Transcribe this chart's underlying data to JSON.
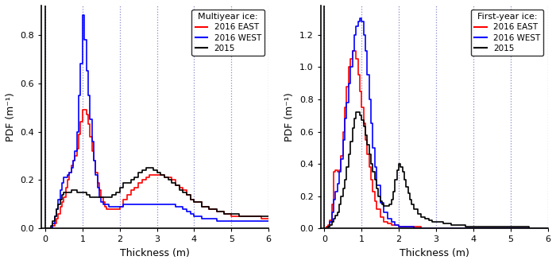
{
  "left_title": "Multiyear ice:",
  "right_title": "First-year ice:",
  "colors": [
    "red",
    "blue",
    "black"
  ],
  "xlabel": "Thickness (m)",
  "ylabel": "PDF (m⁻¹)",
  "xlim": [
    -0.1,
    6
  ],
  "left_ylim": [
    0,
    0.92
  ],
  "right_ylim": [
    0,
    1.38
  ],
  "left_yticks": [
    0.0,
    0.2,
    0.4,
    0.6,
    0.8
  ],
  "right_yticks": [
    0.0,
    0.2,
    0.4,
    0.6,
    0.8,
    1.0,
    1.2
  ],
  "xticks": [
    0,
    1,
    2,
    3,
    4,
    5,
    6
  ],
  "grid_color": "#8888cc",
  "bg_color": "#ffffff",
  "myi_east_x": [
    0.0,
    0.05,
    0.1,
    0.15,
    0.2,
    0.25,
    0.3,
    0.35,
    0.4,
    0.45,
    0.5,
    0.55,
    0.6,
    0.65,
    0.7,
    0.75,
    0.8,
    0.85,
    0.9,
    0.95,
    1.0,
    1.05,
    1.1,
    1.15,
    1.2,
    1.25,
    1.3,
    1.35,
    1.4,
    1.45,
    1.5,
    1.55,
    1.6,
    1.65,
    1.7,
    1.75,
    1.8,
    1.85,
    1.9,
    1.95,
    2.0,
    2.1,
    2.2,
    2.3,
    2.4,
    2.5,
    2.6,
    2.7,
    2.8,
    2.9,
    3.0,
    3.1,
    3.2,
    3.3,
    3.4,
    3.5,
    3.6,
    3.7,
    3.8,
    3.9,
    4.0,
    4.2,
    4.4,
    4.6,
    4.8,
    5.0,
    5.2,
    5.4,
    5.6,
    5.8,
    6.0
  ],
  "myi_east_y": [
    0.0,
    0.0,
    0.0,
    0.0,
    0.01,
    0.02,
    0.04,
    0.06,
    0.09,
    0.11,
    0.13,
    0.17,
    0.2,
    0.23,
    0.26,
    0.28,
    0.3,
    0.33,
    0.39,
    0.44,
    0.49,
    0.49,
    0.47,
    0.43,
    0.38,
    0.32,
    0.28,
    0.23,
    0.19,
    0.16,
    0.13,
    0.11,
    0.09,
    0.08,
    0.08,
    0.08,
    0.08,
    0.08,
    0.08,
    0.08,
    0.09,
    0.12,
    0.14,
    0.16,
    0.17,
    0.19,
    0.2,
    0.21,
    0.22,
    0.22,
    0.22,
    0.22,
    0.21,
    0.21,
    0.2,
    0.18,
    0.17,
    0.16,
    0.14,
    0.12,
    0.11,
    0.09,
    0.08,
    0.07,
    0.06,
    0.05,
    0.05,
    0.05,
    0.05,
    0.04,
    0.04
  ],
  "myi_west_x": [
    0.0,
    0.05,
    0.1,
    0.15,
    0.2,
    0.25,
    0.3,
    0.35,
    0.4,
    0.45,
    0.5,
    0.55,
    0.6,
    0.65,
    0.7,
    0.75,
    0.8,
    0.85,
    0.9,
    0.95,
    1.0,
    1.05,
    1.1,
    1.15,
    1.2,
    1.25,
    1.3,
    1.35,
    1.4,
    1.45,
    1.5,
    1.55,
    1.6,
    1.65,
    1.7,
    1.75,
    1.8,
    1.85,
    1.9,
    1.95,
    2.0,
    2.1,
    2.2,
    2.3,
    2.4,
    2.5,
    2.6,
    2.7,
    2.8,
    2.9,
    3.0,
    3.1,
    3.2,
    3.3,
    3.4,
    3.5,
    3.6,
    3.7,
    3.8,
    3.9,
    4.0,
    4.2,
    4.4,
    4.6,
    4.8,
    5.0,
    5.2,
    5.4,
    5.6,
    5.8,
    6.0
  ],
  "myi_west_y": [
    0.0,
    0.0,
    0.0,
    0.0,
    0.02,
    0.05,
    0.08,
    0.12,
    0.16,
    0.19,
    0.21,
    0.21,
    0.22,
    0.23,
    0.25,
    0.28,
    0.32,
    0.4,
    0.55,
    0.68,
    0.88,
    0.78,
    0.65,
    0.55,
    0.45,
    0.36,
    0.28,
    0.22,
    0.17,
    0.13,
    0.11,
    0.1,
    0.1,
    0.1,
    0.09,
    0.09,
    0.09,
    0.09,
    0.09,
    0.09,
    0.09,
    0.1,
    0.1,
    0.1,
    0.1,
    0.1,
    0.1,
    0.1,
    0.1,
    0.1,
    0.1,
    0.1,
    0.1,
    0.1,
    0.1,
    0.09,
    0.09,
    0.08,
    0.07,
    0.06,
    0.05,
    0.04,
    0.04,
    0.03,
    0.03,
    0.03,
    0.03,
    0.03,
    0.03,
    0.03,
    0.03
  ],
  "myi_2015_x": [
    0.0,
    0.05,
    0.1,
    0.15,
    0.2,
    0.25,
    0.3,
    0.35,
    0.4,
    0.45,
    0.5,
    0.55,
    0.6,
    0.65,
    0.7,
    0.75,
    0.8,
    0.85,
    0.9,
    0.95,
    1.0,
    1.1,
    1.2,
    1.3,
    1.4,
    1.5,
    1.6,
    1.7,
    1.8,
    1.9,
    2.0,
    2.1,
    2.2,
    2.3,
    2.4,
    2.5,
    2.6,
    2.7,
    2.8,
    2.9,
    3.0,
    3.1,
    3.2,
    3.3,
    3.4,
    3.5,
    3.6,
    3.7,
    3.8,
    3.9,
    4.0,
    4.2,
    4.4,
    4.6,
    4.8,
    5.0,
    5.2,
    5.4,
    5.6,
    5.8,
    6.0
  ],
  "myi_2015_y": [
    0.0,
    0.0,
    0.0,
    0.01,
    0.03,
    0.05,
    0.08,
    0.1,
    0.12,
    0.14,
    0.15,
    0.15,
    0.15,
    0.15,
    0.16,
    0.16,
    0.16,
    0.15,
    0.15,
    0.15,
    0.15,
    0.14,
    0.13,
    0.13,
    0.13,
    0.13,
    0.13,
    0.13,
    0.14,
    0.15,
    0.17,
    0.19,
    0.19,
    0.2,
    0.21,
    0.23,
    0.24,
    0.25,
    0.25,
    0.24,
    0.23,
    0.22,
    0.21,
    0.2,
    0.19,
    0.18,
    0.16,
    0.15,
    0.14,
    0.12,
    0.11,
    0.09,
    0.08,
    0.07,
    0.06,
    0.06,
    0.05,
    0.05,
    0.05,
    0.05,
    0.05
  ],
  "fyi_east_x": [
    0.0,
    0.05,
    0.1,
    0.15,
    0.2,
    0.25,
    0.3,
    0.35,
    0.4,
    0.45,
    0.5,
    0.55,
    0.6,
    0.65,
    0.7,
    0.75,
    0.8,
    0.85,
    0.9,
    0.95,
    1.0,
    1.05,
    1.1,
    1.15,
    1.2,
    1.25,
    1.3,
    1.35,
    1.4,
    1.5,
    1.6,
    1.7,
    1.8,
    1.9,
    2.0,
    2.2,
    2.4,
    2.6,
    2.8,
    3.0,
    3.5,
    4.0,
    5.0,
    6.0
  ],
  "fyi_east_y": [
    0.0,
    0.01,
    0.02,
    0.05,
    0.15,
    0.35,
    0.36,
    0.35,
    0.36,
    0.45,
    0.6,
    0.75,
    0.88,
    1.0,
    1.05,
    1.1,
    1.1,
    1.05,
    0.95,
    0.85,
    0.75,
    0.65,
    0.55,
    0.46,
    0.38,
    0.3,
    0.23,
    0.17,
    0.12,
    0.07,
    0.04,
    0.03,
    0.02,
    0.02,
    0.01,
    0.01,
    0.01,
    0.0,
    0.0,
    0.0,
    0.0,
    0.0,
    0.0,
    0.0
  ],
  "fyi_west_x": [
    0.0,
    0.05,
    0.1,
    0.15,
    0.2,
    0.25,
    0.3,
    0.35,
    0.4,
    0.45,
    0.5,
    0.55,
    0.6,
    0.65,
    0.7,
    0.75,
    0.8,
    0.85,
    0.9,
    0.95,
    1.0,
    1.05,
    1.1,
    1.15,
    1.2,
    1.25,
    1.3,
    1.35,
    1.4,
    1.5,
    1.6,
    1.7,
    1.8,
    1.9,
    2.0,
    2.2,
    2.4,
    2.6,
    2.8,
    3.0,
    3.5,
    4.0,
    5.0,
    6.0
  ],
  "fyi_west_y": [
    0.0,
    0.0,
    0.01,
    0.04,
    0.1,
    0.18,
    0.23,
    0.28,
    0.35,
    0.43,
    0.55,
    0.68,
    0.78,
    0.9,
    1.0,
    1.1,
    1.2,
    1.25,
    1.28,
    1.3,
    1.28,
    1.2,
    1.1,
    0.95,
    0.8,
    0.65,
    0.5,
    0.38,
    0.27,
    0.16,
    0.1,
    0.06,
    0.04,
    0.02,
    0.01,
    0.01,
    0.0,
    0.0,
    0.0,
    0.0,
    0.0,
    0.0,
    0.0,
    0.0
  ],
  "fyi_2015_x": [
    0.0,
    0.05,
    0.1,
    0.15,
    0.2,
    0.25,
    0.3,
    0.35,
    0.4,
    0.45,
    0.5,
    0.55,
    0.6,
    0.65,
    0.7,
    0.75,
    0.8,
    0.85,
    0.9,
    0.95,
    1.0,
    1.05,
    1.1,
    1.15,
    1.2,
    1.25,
    1.3,
    1.35,
    1.4,
    1.45,
    1.5,
    1.55,
    1.6,
    1.65,
    1.7,
    1.75,
    1.8,
    1.85,
    1.9,
    1.95,
    2.0,
    2.05,
    2.1,
    2.15,
    2.2,
    2.25,
    2.3,
    2.35,
    2.4,
    2.5,
    2.6,
    2.7,
    2.8,
    2.9,
    3.0,
    3.2,
    3.4,
    3.6,
    3.8,
    4.0,
    4.5,
    5.0,
    5.5,
    6.0
  ],
  "fyi_2015_y": [
    0.0,
    0.0,
    0.01,
    0.02,
    0.04,
    0.06,
    0.08,
    0.1,
    0.15,
    0.2,
    0.25,
    0.3,
    0.38,
    0.46,
    0.54,
    0.62,
    0.68,
    0.72,
    0.72,
    0.7,
    0.67,
    0.63,
    0.58,
    0.52,
    0.46,
    0.4,
    0.35,
    0.3,
    0.25,
    0.2,
    0.17,
    0.15,
    0.14,
    0.14,
    0.14,
    0.15,
    0.18,
    0.23,
    0.3,
    0.36,
    0.4,
    0.38,
    0.35,
    0.3,
    0.26,
    0.22,
    0.18,
    0.15,
    0.12,
    0.09,
    0.07,
    0.06,
    0.05,
    0.04,
    0.04,
    0.03,
    0.02,
    0.02,
    0.01,
    0.01,
    0.01,
    0.01,
    0.0,
    0.0
  ]
}
